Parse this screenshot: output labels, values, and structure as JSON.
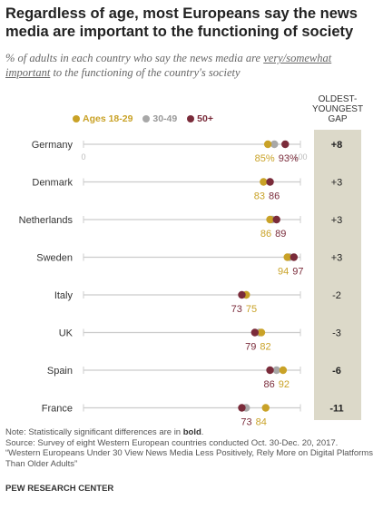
{
  "title": "Regardless of age, most Europeans say the news media are important to the functioning of society",
  "subtitle": {
    "pre": "% of adults in each country who say the news media are ",
    "em": "very/somewhat important",
    "post": " to the functioning of the country's society"
  },
  "gap_header": [
    "OLDEST-",
    "YOUNGEST",
    "GAP"
  ],
  "notes": {
    "note_prefix": "Note: Statistically significant differences are in ",
    "note_bold": "bold",
    "note_suffix": ".",
    "source": "Source: Survey of eight Western European countries conducted Oct. 30-Dec. 20, 2017.",
    "report": "“Western Europeans Under 30 View News Media Less Positively, Rely More on Digital Platforms Than Older Adults”"
  },
  "credit": "PEW RESEARCH CENTER",
  "colors": {
    "young": "#c9a227",
    "mid": "#a8a8a8",
    "old": "#7a2b3a",
    "axis": "#cccccc",
    "gap_bg": "#dcd9c9"
  },
  "chart_data": {
    "type": "dot",
    "xlim": [
      0,
      100
    ],
    "x_tick_labels": [
      "0",
      "100"
    ],
    "legend": [
      "Ages 18-29",
      "30-49",
      "50+"
    ],
    "categories": [
      "Germany",
      "Denmark",
      "Netherlands",
      "Sweden",
      "Italy",
      "UK",
      "Spain",
      "France"
    ],
    "series": [
      {
        "name": "Ages 18-29",
        "values": [
          85,
          83,
          86,
          94,
          75,
          82,
          92,
          84
        ]
      },
      {
        "name": "30-49",
        "values": [
          88,
          86,
          87,
          95,
          75,
          81,
          89,
          75
        ]
      },
      {
        "name": "50+",
        "values": [
          93,
          86,
          89,
          97,
          73,
          79,
          86,
          73
        ]
      }
    ],
    "labels": [
      {
        "text": "85%",
        "series": 0
      },
      {
        "text": "93%",
        "series": 2
      },
      {
        "text": "83",
        "series": 0
      },
      {
        "text": "86",
        "series": 2
      },
      {
        "text": "86",
        "series": 0
      },
      {
        "text": "89",
        "series": 2
      },
      {
        "text": "94",
        "series": 0
      },
      {
        "text": "97",
        "series": 2
      },
      {
        "text": "73",
        "series": 2
      },
      {
        "text": "75",
        "series": 0
      },
      {
        "text": "79",
        "series": 2
      },
      {
        "text": "82",
        "series": 0
      },
      {
        "text": "86",
        "series": 2
      },
      {
        "text": "92",
        "series": 0
      },
      {
        "text": "73",
        "series": 2
      },
      {
        "text": "84",
        "series": 0
      }
    ],
    "gap": [
      {
        "text": "+8",
        "significant": true
      },
      {
        "text": "+3",
        "significant": false
      },
      {
        "text": "+3",
        "significant": false
      },
      {
        "text": "+3",
        "significant": false
      },
      {
        "text": "-2",
        "significant": false
      },
      {
        "text": "-3",
        "significant": false
      },
      {
        "text": "-6",
        "significant": true
      },
      {
        "text": "-11",
        "significant": true
      }
    ]
  }
}
